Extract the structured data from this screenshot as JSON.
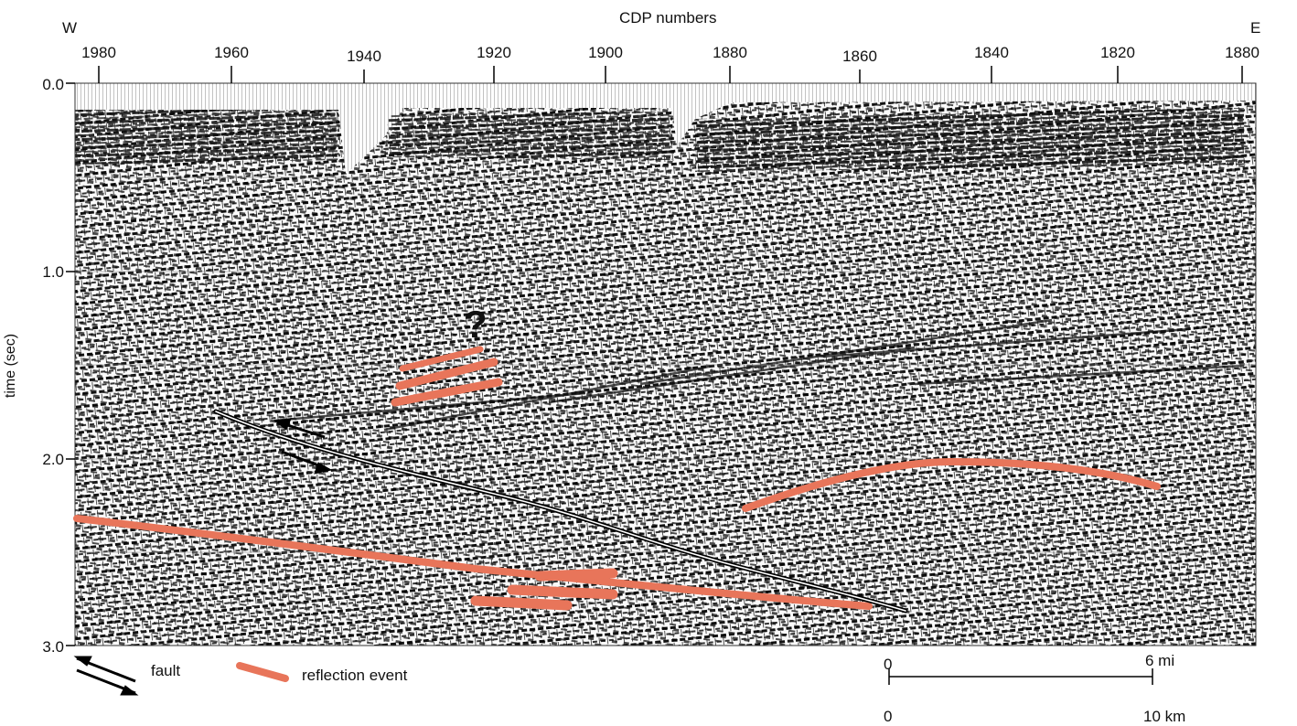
{
  "header": {
    "title": "CDP numbers",
    "west_label": "W",
    "east_label": "E"
  },
  "x_axis": {
    "ticks": [
      "1980",
      "1960",
      "1940",
      "1920",
      "1900",
      "1880",
      "1860",
      "1840",
      "1820",
      "1880"
    ]
  },
  "y_axis": {
    "label": "time (sec)",
    "ticks": [
      "0.0",
      "1.0",
      "2.0",
      "3.0"
    ]
  },
  "annotations": {
    "question_mark": "?"
  },
  "legend": {
    "fault_label": "fault",
    "reflection_label": "reflection event"
  },
  "scale_bar": {
    "mi_start": "0",
    "mi_end": "6 mi",
    "km_start": "0",
    "km_end": "10 km"
  },
  "colors": {
    "reflection": "#e8755a",
    "fault": "#000000",
    "background": "#ffffff"
  }
}
